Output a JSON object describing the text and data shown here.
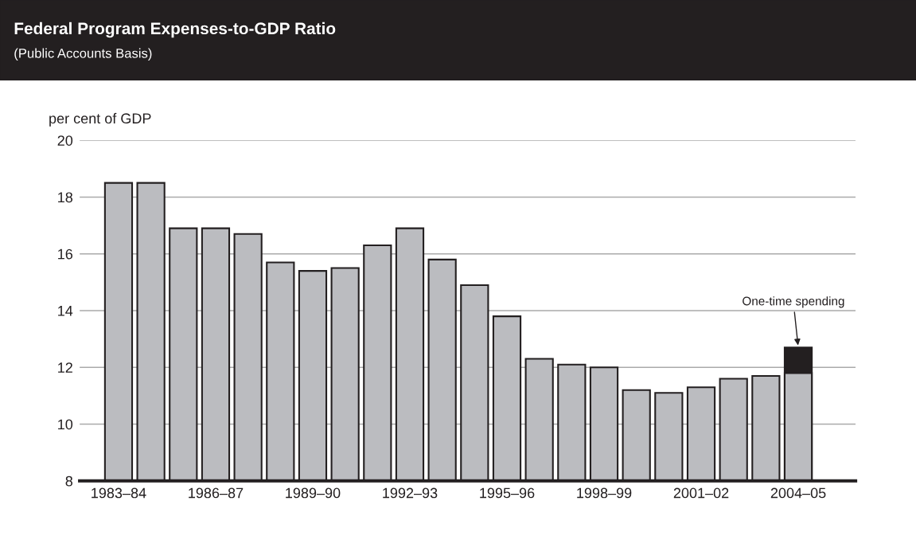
{
  "chart_data": {
    "type": "bar",
    "title": "Federal Program Expenses-to-GDP Ratio",
    "subtitle": "(Public Accounts Basis)",
    "ylabel": "per cent of GDP",
    "categories": [
      "1983–84",
      null,
      null,
      "1986–87",
      null,
      null,
      "1989–90",
      null,
      null,
      "1992–93",
      null,
      null,
      "1995–96",
      null,
      null,
      "1998–99",
      null,
      null,
      "2001–02",
      null,
      null,
      "2004–05"
    ],
    "series": [
      {
        "color": "#231f20",
        "values": [
          null,
          null,
          null,
          null,
          null,
          null,
          null,
          null,
          null,
          null,
          null,
          null,
          null,
          null,
          null,
          null,
          null,
          null,
          null,
          null,
          null,
          12.7
        ]
      },
      {
        "color": "#bbbcc0",
        "values": [
          18.5,
          18.5,
          16.9,
          16.9,
          16.7,
          15.7,
          15.4,
          15.5,
          16.3,
          16.9,
          15.8,
          14.9,
          13.8,
          12.3,
          12.1,
          12.0,
          11.2,
          11.1,
          11.3,
          11.6,
          11.7,
          11.8
        ]
      }
    ],
    "ylim": [
      8,
      20
    ],
    "yticks": [
      8,
      10,
      12,
      14,
      16,
      18,
      20
    ],
    "grid": "y",
    "annotations": [
      {
        "text": "One-time spending",
        "x": "2004–05",
        "y": 12.7
      }
    ]
  }
}
